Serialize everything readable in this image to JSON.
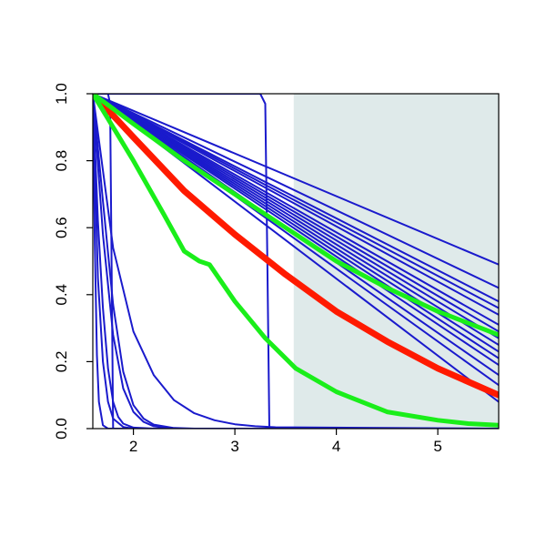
{
  "chart_data": {
    "type": "line",
    "title": "",
    "xlabel": "",
    "ylabel": "",
    "xlim": [
      1.6,
      5.6
    ],
    "ylim": [
      0.0,
      1.0
    ],
    "x_ticks": [
      2,
      3,
      4,
      5
    ],
    "y_ticks": [
      0.0,
      0.2,
      0.4,
      0.6,
      0.8,
      1.0
    ],
    "x_tick_labels": [
      "2",
      "3",
      "4",
      "5"
    ],
    "y_tick_labels": [
      "0.0",
      "0.2",
      "0.4",
      "0.6",
      "0.8",
      "1.0"
    ],
    "shaded_region": {
      "x": [
        3.58,
        5.6
      ],
      "color": "#dfeaea"
    },
    "colors": {
      "blue": "#1a1acc",
      "red": "#ff1a00",
      "green": "#1aee1a"
    },
    "series": [
      {
        "color": "blue",
        "x": [
          1.6,
          5.6
        ],
        "y": [
          1.0,
          0.49
        ]
      },
      {
        "color": "blue",
        "x": [
          1.6,
          5.6
        ],
        "y": [
          1.0,
          0.42
        ]
      },
      {
        "color": "blue",
        "x": [
          1.6,
          5.6
        ],
        "y": [
          1.0,
          0.38
        ]
      },
      {
        "color": "blue",
        "x": [
          1.6,
          5.6
        ],
        "y": [
          1.0,
          0.36
        ]
      },
      {
        "color": "blue",
        "x": [
          1.6,
          5.6
        ],
        "y": [
          1.0,
          0.34
        ]
      },
      {
        "color": "blue",
        "x": [
          1.6,
          5.6
        ],
        "y": [
          1.0,
          0.31
        ]
      },
      {
        "color": "blue",
        "x": [
          1.6,
          5.6
        ],
        "y": [
          1.0,
          0.29
        ]
      },
      {
        "color": "blue",
        "x": [
          1.6,
          5.6
        ],
        "y": [
          1.0,
          0.27
        ]
      },
      {
        "color": "blue",
        "x": [
          1.6,
          5.6
        ],
        "y": [
          1.0,
          0.25
        ]
      },
      {
        "color": "blue",
        "x": [
          1.6,
          5.6
        ],
        "y": [
          1.0,
          0.23
        ]
      },
      {
        "color": "blue",
        "x": [
          1.6,
          5.6
        ],
        "y": [
          1.0,
          0.21
        ]
      },
      {
        "color": "blue",
        "x": [
          1.6,
          5.6
        ],
        "y": [
          1.0,
          0.19
        ]
      },
      {
        "color": "blue",
        "x": [
          1.6,
          5.6
        ],
        "y": [
          1.0,
          0.16
        ]
      },
      {
        "color": "blue",
        "x": [
          1.6,
          5.6
        ],
        "y": [
          1.0,
          0.13
        ]
      },
      {
        "color": "blue",
        "x": [
          1.6,
          5.6
        ],
        "y": [
          1.0,
          0.08
        ]
      },
      {
        "color": "blue",
        "x": [
          1.6,
          3.25,
          3.3,
          3.32,
          3.34,
          5.6
        ],
        "y": [
          1.0,
          1.0,
          0.97,
          0.5,
          0.0,
          0.0
        ]
      },
      {
        "color": "blue",
        "x": [
          1.6,
          1.75,
          1.77,
          1.8,
          5.6
        ],
        "y": [
          1.0,
          1.0,
          0.97,
          0.0,
          0.0
        ]
      },
      {
        "color": "blue",
        "x": [
          1.6,
          1.8,
          2.0,
          2.2,
          2.4,
          2.6,
          2.8,
          3.0,
          3.2,
          3.4,
          5.6
        ],
        "y": [
          1.0,
          0.54,
          0.29,
          0.16,
          0.085,
          0.046,
          0.025,
          0.013,
          0.007,
          0.004,
          0.0
        ]
      },
      {
        "color": "blue",
        "x": [
          1.6,
          1.7,
          1.8,
          1.9,
          2.0,
          2.1,
          2.2,
          2.4,
          2.6,
          5.6
        ],
        "y": [
          1.0,
          0.68,
          0.37,
          0.17,
          0.07,
          0.03,
          0.012,
          0.002,
          0.0,
          0.0
        ]
      },
      {
        "color": "blue",
        "x": [
          1.6,
          1.7,
          1.8,
          1.9,
          2.0,
          2.1,
          2.2,
          2.4,
          5.6
        ],
        "y": [
          1.0,
          0.58,
          0.28,
          0.12,
          0.05,
          0.02,
          0.007,
          0.0,
          0.0
        ]
      },
      {
        "color": "blue",
        "x": [
          1.6,
          1.65,
          1.7,
          1.75,
          1.8,
          1.85,
          1.9,
          2.0,
          2.2,
          5.6
        ],
        "y": [
          1.0,
          0.62,
          0.36,
          0.18,
          0.08,
          0.035,
          0.015,
          0.003,
          0.0,
          0.0
        ]
      },
      {
        "color": "blue",
        "x": [
          1.6,
          1.65,
          1.7,
          1.75,
          1.8,
          1.9,
          2.0,
          5.6
        ],
        "y": [
          1.0,
          0.45,
          0.2,
          0.08,
          0.03,
          0.005,
          0.0,
          0.0
        ]
      },
      {
        "color": "blue",
        "x": [
          1.6,
          1.62,
          1.64,
          1.66,
          1.7,
          1.75,
          5.6
        ],
        "y": [
          1.0,
          0.55,
          0.22,
          0.08,
          0.01,
          0.0,
          0.0
        ]
      },
      {
        "color": "red",
        "x": [
          1.6,
          2.0,
          2.5,
          3.0,
          3.5,
          4.0,
          4.5,
          5.0,
          5.6
        ],
        "y": [
          1.0,
          0.87,
          0.71,
          0.58,
          0.46,
          0.35,
          0.26,
          0.18,
          0.1
        ]
      },
      {
        "color": "green",
        "x": [
          1.6,
          2.0,
          2.5,
          3.0,
          3.5,
          4.0,
          4.5,
          5.0,
          5.6
        ],
        "y": [
          1.0,
          0.91,
          0.8,
          0.7,
          0.6,
          0.5,
          0.42,
          0.35,
          0.28
        ]
      },
      {
        "color": "green",
        "x": [
          1.6,
          2.0,
          2.3,
          2.5,
          2.65,
          2.75,
          3.0,
          3.3,
          3.6,
          4.0,
          4.5,
          5.0,
          5.3,
          5.6
        ],
        "y": [
          1.0,
          0.8,
          0.64,
          0.53,
          0.5,
          0.49,
          0.38,
          0.27,
          0.18,
          0.11,
          0.05,
          0.025,
          0.015,
          0.01
        ]
      }
    ]
  }
}
